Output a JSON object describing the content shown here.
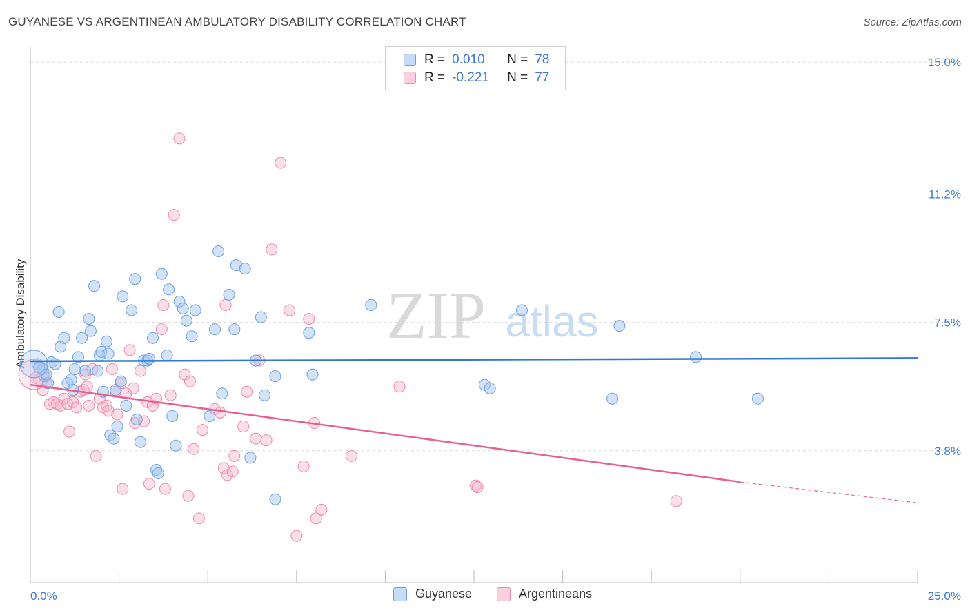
{
  "header": {
    "title": "GUYANESE VS ARGENTINEAN AMBULATORY DISABILITY CORRELATION CHART",
    "source": "Source: ZipAtlas.com"
  },
  "watermark": {
    "zip": "ZIP",
    "atlas": "atlas"
  },
  "legend_top": [
    {
      "r_label": "R =",
      "r_value": "0.010",
      "n_label": "N =",
      "n_value": "78"
    },
    {
      "r_label": "R =",
      "r_value": "-0.221",
      "n_label": "N =",
      "n_value": "77"
    }
  ],
  "legend_bottom": [
    "Guyanese",
    "Argentineans"
  ],
  "colors": {
    "guyanese_fill": "#a8c8f0",
    "guyanese_stroke": "#6a9ee0",
    "guyanese_line": "#2f78d4",
    "argentinean_fill": "#f7b9cd",
    "argentinean_stroke": "#ec8aab",
    "argentinean_line": "#e8608f",
    "tick_label": "#3c78d8"
  },
  "chart_data": {
    "type": "scatter",
    "title": "GUYANESE VS ARGENTINEAN AMBULATORY DISABILITY CORRELATION CHART",
    "xlabel": "",
    "ylabel": "Ambulatory Disability",
    "xlim": [
      0,
      25
    ],
    "ylim": [
      0,
      15.6
    ],
    "x_tick_labels": [
      "0.0%",
      "25.0%"
    ],
    "y_ticks": [
      3.8,
      7.5,
      11.2,
      15.0
    ],
    "y_tick_labels": [
      "3.8%",
      "7.5%",
      "11.2%",
      "15.0%"
    ],
    "grid": true,
    "legend_position": "top-center",
    "series": [
      {
        "name": "Guyanese",
        "r": 0.01,
        "n": 78,
        "trend": {
          "x": [
            0,
            25
          ],
          "y": [
            6.38,
            6.47
          ]
        },
        "points": [
          [
            0.2,
            6.3
          ],
          [
            0.35,
            6.15
          ],
          [
            0.4,
            5.95
          ],
          [
            0.5,
            5.75
          ],
          [
            0.6,
            6.35
          ],
          [
            0.7,
            6.3
          ],
          [
            0.8,
            7.8
          ],
          [
            0.85,
            6.8
          ],
          [
            0.95,
            7.05
          ],
          [
            1.05,
            5.75
          ],
          [
            1.15,
            5.85
          ],
          [
            1.2,
            5.55
          ],
          [
            1.35,
            6.5
          ],
          [
            1.45,
            7.05
          ],
          [
            1.55,
            6.1
          ],
          [
            1.65,
            7.6
          ],
          [
            1.7,
            7.25
          ],
          [
            1.8,
            8.55
          ],
          [
            1.9,
            6.1
          ],
          [
            1.95,
            6.55
          ],
          [
            2.0,
            6.65
          ],
          [
            2.15,
            6.95
          ],
          [
            2.2,
            6.6
          ],
          [
            2.25,
            4.25
          ],
          [
            2.35,
            4.15
          ],
          [
            2.4,
            5.55
          ],
          [
            2.45,
            4.5
          ],
          [
            2.55,
            5.8
          ],
          [
            2.6,
            8.25
          ],
          [
            2.7,
            5.1
          ],
          [
            2.85,
            7.85
          ],
          [
            2.95,
            8.75
          ],
          [
            3.0,
            4.7
          ],
          [
            3.1,
            4.05
          ],
          [
            3.2,
            6.4
          ],
          [
            3.3,
            6.4
          ],
          [
            3.35,
            6.45
          ],
          [
            3.45,
            7.05
          ],
          [
            3.55,
            3.25
          ],
          [
            3.6,
            3.15
          ],
          [
            3.7,
            8.9
          ],
          [
            3.85,
            6.55
          ],
          [
            3.9,
            8.45
          ],
          [
            4.0,
            4.8
          ],
          [
            4.1,
            3.95
          ],
          [
            4.2,
            8.1
          ],
          [
            4.3,
            7.9
          ],
          [
            4.4,
            7.55
          ],
          [
            4.55,
            7.1
          ],
          [
            4.65,
            7.85
          ],
          [
            5.05,
            4.8
          ],
          [
            5.2,
            7.3
          ],
          [
            5.3,
            9.55
          ],
          [
            5.4,
            5.45
          ],
          [
            5.6,
            8.3
          ],
          [
            5.75,
            7.3
          ],
          [
            5.8,
            9.15
          ],
          [
            6.05,
            9.05
          ],
          [
            6.2,
            3.6
          ],
          [
            6.35,
            6.4
          ],
          [
            6.5,
            7.65
          ],
          [
            6.6,
            5.4
          ],
          [
            6.9,
            5.95
          ],
          [
            6.9,
            2.4
          ],
          [
            7.85,
            7.2
          ],
          [
            7.95,
            6.0
          ],
          [
            9.6,
            8.0
          ],
          [
            12.8,
            5.7
          ],
          [
            12.95,
            5.6
          ],
          [
            13.85,
            7.85
          ],
          [
            16.4,
            5.3
          ],
          [
            16.6,
            7.4
          ],
          [
            18.75,
            6.5
          ],
          [
            20.5,
            5.3
          ],
          [
            0.25,
            6.2
          ],
          [
            0.45,
            6.0
          ],
          [
            1.25,
            6.15
          ],
          [
            2.05,
            5.5
          ]
        ]
      },
      {
        "name": "Argentineans",
        "r": -0.221,
        "n": 77,
        "trend": {
          "x": [
            0,
            20
          ],
          "y": [
            5.7,
            2.9
          ],
          "dashed_to": [
            25,
            2.3
          ]
        },
        "points": [
          [
            0.15,
            5.9
          ],
          [
            0.25,
            5.85
          ],
          [
            0.35,
            5.55
          ],
          [
            0.45,
            5.75
          ],
          [
            0.55,
            5.15
          ],
          [
            0.65,
            5.2
          ],
          [
            0.75,
            5.15
          ],
          [
            0.85,
            5.1
          ],
          [
            0.95,
            5.3
          ],
          [
            1.05,
            5.15
          ],
          [
            1.1,
            4.35
          ],
          [
            1.2,
            5.2
          ],
          [
            1.3,
            5.05
          ],
          [
            1.4,
            5.5
          ],
          [
            1.5,
            5.55
          ],
          [
            1.55,
            6.0
          ],
          [
            1.6,
            5.65
          ],
          [
            1.65,
            5.1
          ],
          [
            1.75,
            6.15
          ],
          [
            1.85,
            3.65
          ],
          [
            1.95,
            5.3
          ],
          [
            2.05,
            5.05
          ],
          [
            2.15,
            5.1
          ],
          [
            2.2,
            4.95
          ],
          [
            2.3,
            6.15
          ],
          [
            2.4,
            5.5
          ],
          [
            2.45,
            4.85
          ],
          [
            2.55,
            5.75
          ],
          [
            2.6,
            2.7
          ],
          [
            2.7,
            5.45
          ],
          [
            2.8,
            6.7
          ],
          [
            2.9,
            5.6
          ],
          [
            2.95,
            4.6
          ],
          [
            3.1,
            6.1
          ],
          [
            3.2,
            4.65
          ],
          [
            3.3,
            5.2
          ],
          [
            3.35,
            2.85
          ],
          [
            3.45,
            5.1
          ],
          [
            3.55,
            5.3
          ],
          [
            3.7,
            7.3
          ],
          [
            3.75,
            8.0
          ],
          [
            3.8,
            2.7
          ],
          [
            3.95,
            5.4
          ],
          [
            4.05,
            10.6
          ],
          [
            4.2,
            12.8
          ],
          [
            4.35,
            6.0
          ],
          [
            4.45,
            2.5
          ],
          [
            4.5,
            5.8
          ],
          [
            4.6,
            3.85
          ],
          [
            4.75,
            1.85
          ],
          [
            4.85,
            4.4
          ],
          [
            5.2,
            5.0
          ],
          [
            5.35,
            4.9
          ],
          [
            5.45,
            3.3
          ],
          [
            5.5,
            8.0
          ],
          [
            5.55,
            3.1
          ],
          [
            5.7,
            3.2
          ],
          [
            5.75,
            3.65
          ],
          [
            6.0,
            4.5
          ],
          [
            6.1,
            5.5
          ],
          [
            6.35,
            4.15
          ],
          [
            6.45,
            6.4
          ],
          [
            6.65,
            4.1
          ],
          [
            6.8,
            9.6
          ],
          [
            7.05,
            12.1
          ],
          [
            7.3,
            7.85
          ],
          [
            7.5,
            1.35
          ],
          [
            7.7,
            3.35
          ],
          [
            7.85,
            7.6
          ],
          [
            8.0,
            4.6
          ],
          [
            8.05,
            1.85
          ],
          [
            8.2,
            2.1
          ],
          [
            9.05,
            3.65
          ],
          [
            10.4,
            5.65
          ],
          [
            12.55,
            2.8
          ],
          [
            12.6,
            2.75
          ],
          [
            18.2,
            2.35
          ]
        ]
      }
    ]
  }
}
